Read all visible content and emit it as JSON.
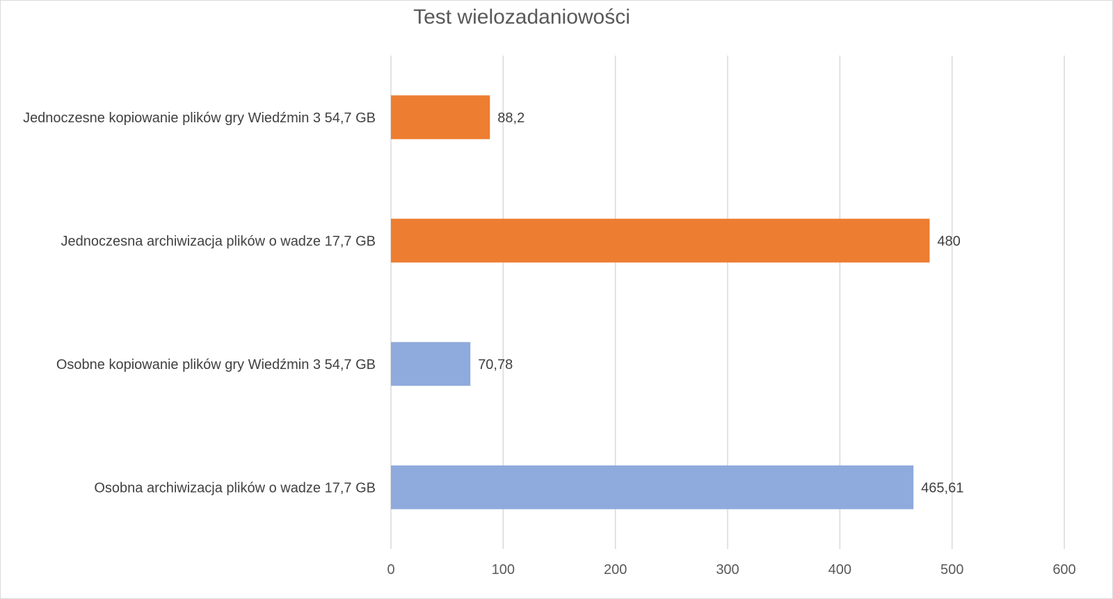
{
  "chart_data": {
    "type": "bar",
    "orientation": "horizontal",
    "title": "Test wielozadaniowości",
    "xlabel": "",
    "ylabel": "",
    "xlim": [
      0,
      600
    ],
    "x_ticks": [
      "0",
      "100",
      "200",
      "300",
      "400",
      "500",
      "600"
    ],
    "grid": "vertical",
    "categories": [
      "Jednoczesne kopiowanie plików gry Wiedźmin 3 54,7 GB",
      "Jednoczesna archiwizacja plików o wadze 17,7 GB",
      "Osobne kopiowanie plików gry Wiedźmin 3 54,7 GB",
      "Osobna archiwizacja plików o wadze 17,7 GB"
    ],
    "values": [
      88.2,
      480,
      70.78,
      465.61
    ],
    "value_labels": [
      "88,2",
      "480",
      "70,78",
      "465,61"
    ],
    "colors": [
      "#ed7d31",
      "#ed7d31",
      "#8faadc",
      "#8faadc"
    ]
  }
}
